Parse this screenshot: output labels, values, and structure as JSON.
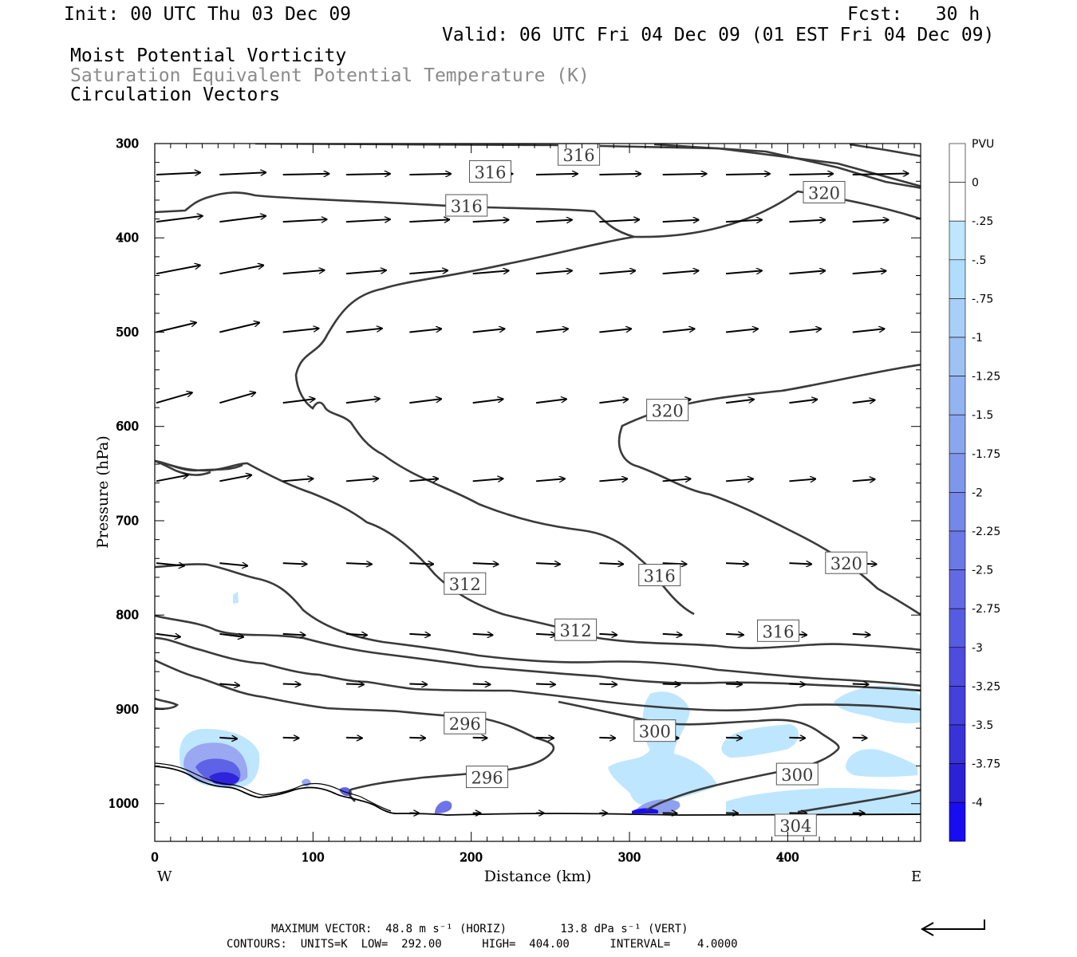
{
  "header": {
    "init": "Init: 00 UTC Thu 03 Dec 09",
    "fcst": "Fcst:   30 h",
    "valid": "Valid: 06 UTC Fri 04 Dec 09 (01 EST Fri 04 Dec 09)",
    "title1": "Moist Potential Vorticity",
    "title2": "Saturation Equivalent Potential Temperature (K)",
    "title3": "Circulation Vectors"
  },
  "footer": {
    "max_vector": "MAXIMUM VECTOR:  48.8 m s⁻¹ (HORIZ)        13.8 dPa s⁻¹ (VERT)",
    "contours": "CONTOURS:  UNITS=K  LOW=  292.00      HIGH=  404.00      INTERVAL=    4.0000"
  },
  "colors": {
    "contour": "#3a3a3a",
    "pv_light": "#bfe6ff",
    "pv_dark": "#1a0cf0"
  },
  "chart_data": {
    "type": "contour",
    "xlabel": "Distance (km)",
    "ylabel": "Pressure (hPa)",
    "xlim": [
      0,
      484
    ],
    "ylim": [
      1040,
      300
    ],
    "y_log": false,
    "x_ticks": [
      "0",
      "100",
      "200",
      "300",
      "400"
    ],
    "y_ticks": [
      "300",
      "400",
      "500",
      "600",
      "700",
      "800",
      "900",
      "1000"
    ],
    "x_end_labels": {
      "west": "W",
      "east": "E"
    },
    "grid": false,
    "colorbar": {
      "unit": "PVU",
      "labels": [
        "0",
        "-.25",
        "-.5",
        "-.75",
        "-1",
        "-1.25",
        "-1.5",
        "-1.75",
        "-2",
        "-2.25",
        "-2.5",
        "-2.75",
        "-3",
        "-3.25",
        "-3.5",
        "-3.75",
        "-4"
      ],
      "colors": [
        "#ffffff",
        "#ffffff",
        "#bfe6ff",
        "#b2dcfb",
        "#a8cff7",
        "#9ec2f4",
        "#94b4f1",
        "#8aa6ee",
        "#7f97eb",
        "#7588e8",
        "#6b79e6",
        "#616ae4",
        "#575be1",
        "#4d4cdf",
        "#4340dc",
        "#3833d9",
        "#2c22d5",
        "#1a0cf0"
      ]
    },
    "theta_es_contour_labels": [
      {
        "text": "316",
        "x": 197,
        "p": 366
      },
      {
        "text": "316",
        "x": 212,
        "p": 330
      },
      {
        "text": "316",
        "x": 268,
        "p": 312
      },
      {
        "text": "320",
        "x": 423,
        "p": 352
      },
      {
        "text": "320",
        "x": 324,
        "p": 583
      },
      {
        "text": "320",
        "x": 437,
        "p": 745
      },
      {
        "text": "316",
        "x": 319,
        "p": 758
      },
      {
        "text": "312",
        "x": 196,
        "p": 767
      },
      {
        "text": "312",
        "x": 266,
        "p": 816
      },
      {
        "text": "316",
        "x": 394,
        "p": 817
      },
      {
        "text": "296",
        "x": 196,
        "p": 915
      },
      {
        "text": "300",
        "x": 316,
        "p": 923
      },
      {
        "text": "296",
        "x": 210,
        "p": 972
      },
      {
        "text": "300",
        "x": 406,
        "p": 969
      },
      {
        "text": "304",
        "x": 405,
        "p": 1023
      }
    ],
    "max_vector": {
      "horiz_m_s": 48.8,
      "vert_dPa_s": 13.8
    },
    "contour_interval_K": 4.0,
    "contour_low_K": 292.0,
    "contour_high_K": 404.0
  }
}
